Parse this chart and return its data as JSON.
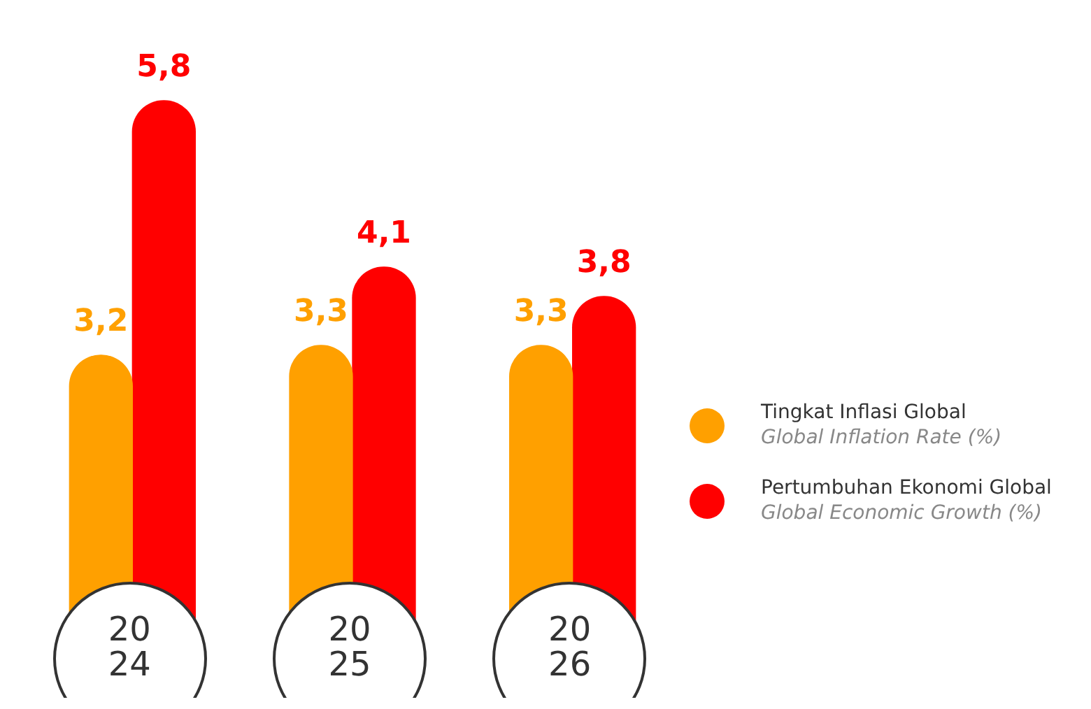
{
  "chart_data": {
    "type": "bar",
    "categories": [
      "20\n24",
      "20\n25",
      "20\n26"
    ],
    "series": [
      {
        "name": "Tingkat Inflasi Global\nGlobal Inflation Rate (%)",
        "color": "#ffa000",
        "values": [
          3.2,
          3.3,
          3.3
        ],
        "value_labels": [
          "3,2",
          "3,3",
          "3,3"
        ]
      },
      {
        "name": "Pertumbuhan Ekonomi Global\nGlobal Economic Growth (%)",
        "color": "#ff0000",
        "values": [
          5.8,
          4.1,
          3.8
        ],
        "value_labels": [
          "5,8",
          "4,1",
          "3,8"
        ]
      }
    ],
    "data_labels": true,
    "relative": false,
    "grid": false,
    "legend": "right"
  }
}
